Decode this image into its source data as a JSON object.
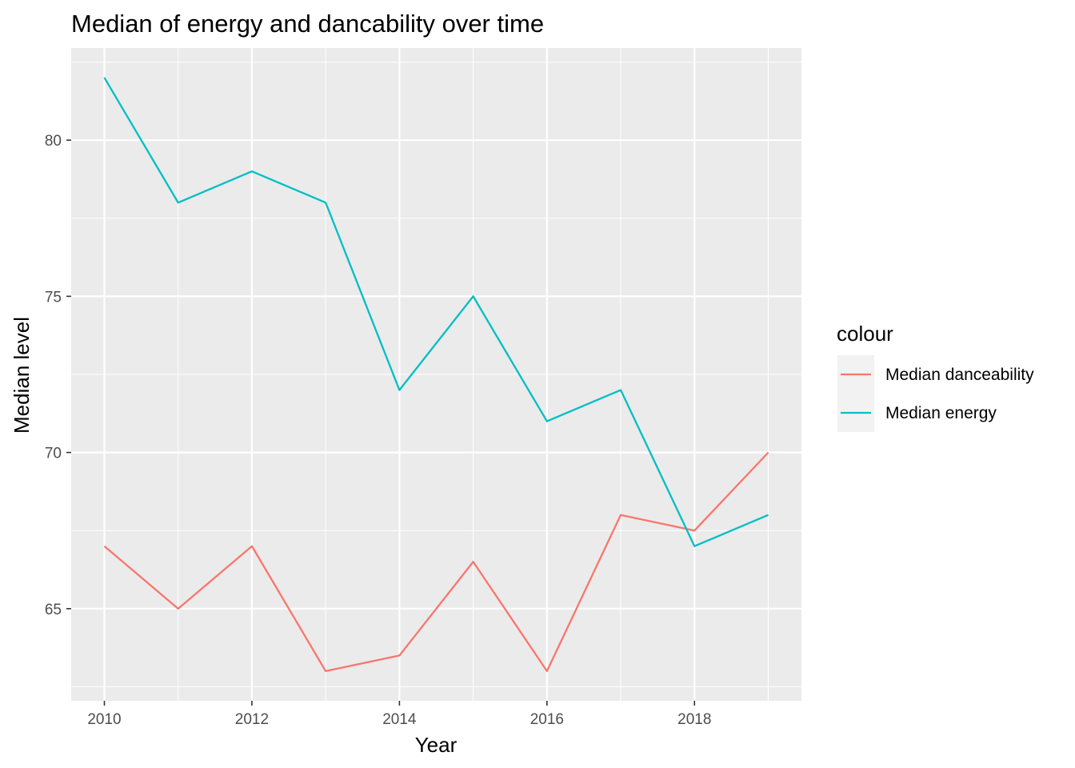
{
  "chart_data": {
    "type": "line",
    "title": "Median of energy and dancability over time",
    "xlabel": "Year",
    "ylabel": "Median level",
    "x": [
      2010,
      2011,
      2012,
      2013,
      2014,
      2015,
      2016,
      2017,
      2018,
      2019
    ],
    "series": [
      {
        "name": "Median danceability",
        "color": "#F8766D",
        "values": [
          67,
          65,
          67,
          63,
          63.5,
          66.5,
          63,
          68,
          67.5,
          70
        ]
      },
      {
        "name": "Median energy",
        "color": "#00BFC4",
        "values": [
          82,
          78,
          79,
          78,
          72,
          75,
          71,
          72,
          67,
          68
        ]
      }
    ],
    "xlim": [
      2009.55,
      2019.45
    ],
    "ylim": [
      62.05,
      82.95
    ],
    "x_ticks": [
      2010,
      2012,
      2014,
      2016,
      2018
    ],
    "y_ticks": [
      65,
      70,
      75,
      80
    ],
    "legend": {
      "title": "colour",
      "placement": "right"
    },
    "grid": true,
    "panel_background": "#EBEBEB"
  }
}
